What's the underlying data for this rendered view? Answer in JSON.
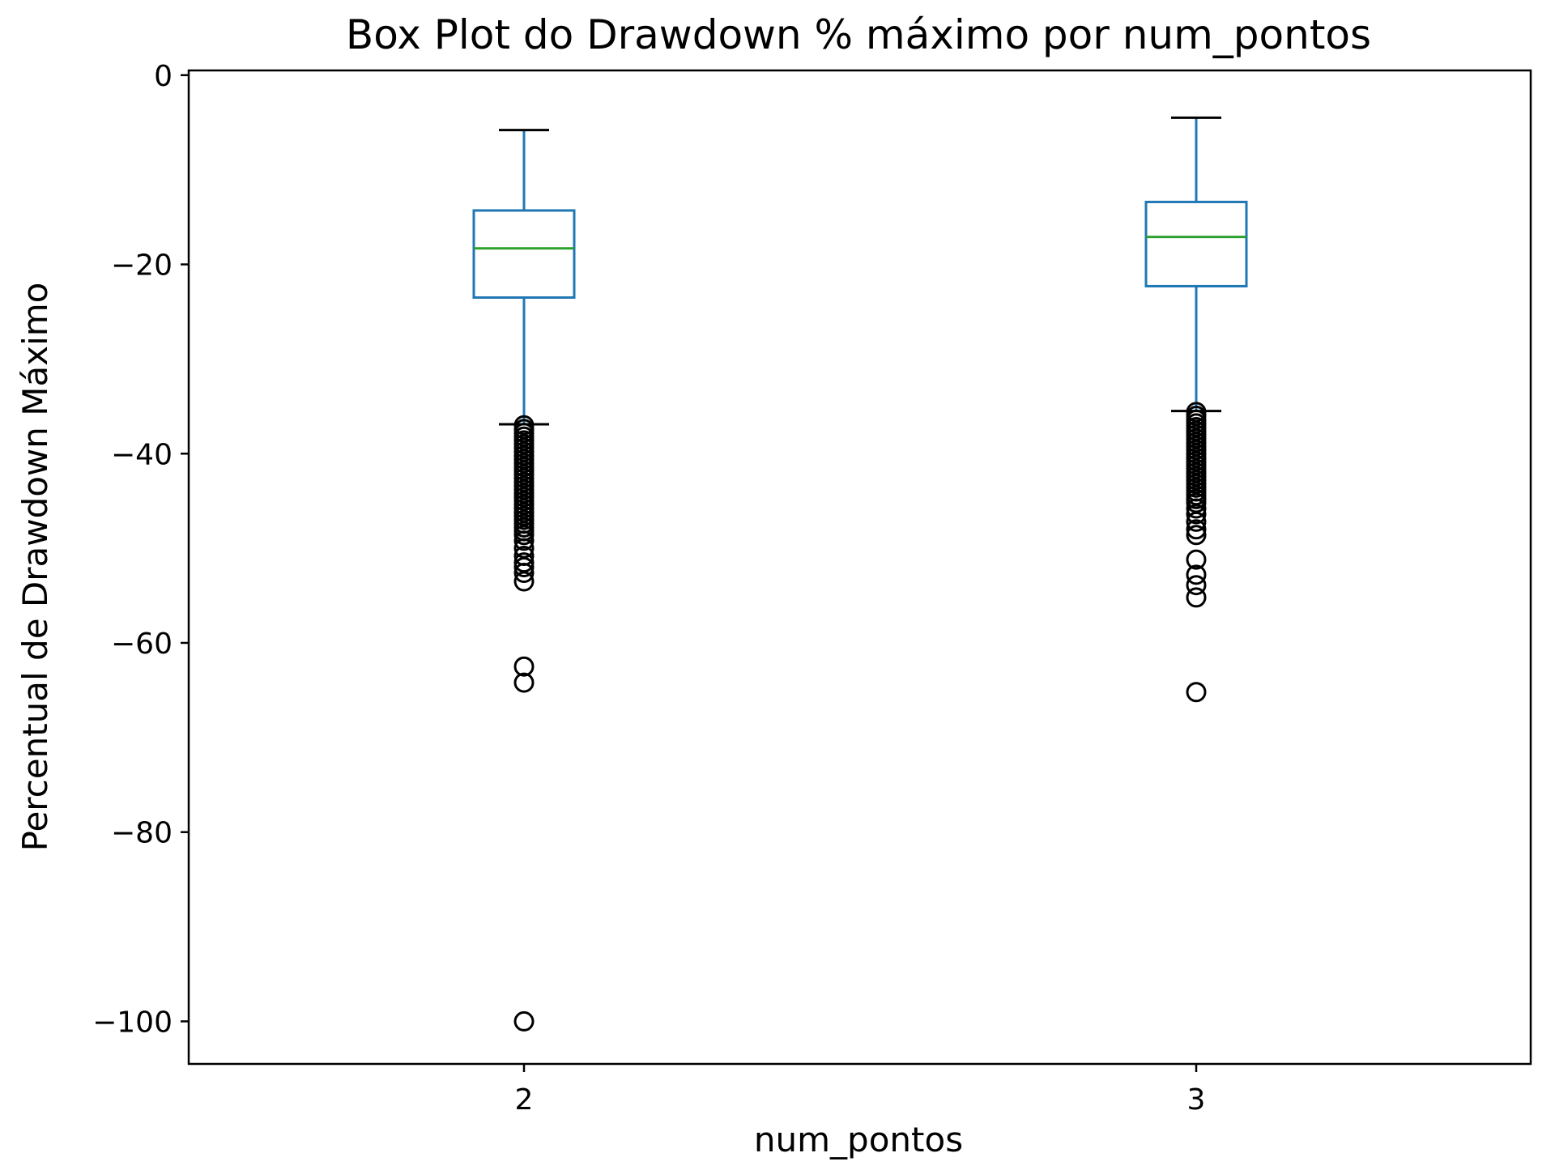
{
  "chart_data": {
    "type": "box",
    "title": "Box Plot do Drawdown % máximo por num_pontos",
    "xlabel": "num_pontos",
    "ylabel": "Percentual de Drawdown Máximo",
    "ylim": [
      -104.5,
      0.5
    ],
    "yticks": [
      0,
      -20,
      -40,
      -60,
      -80,
      -100
    ],
    "ytick_labels": [
      "0",
      "−20",
      "−40",
      "−60",
      "−80",
      "−100"
    ],
    "categories": [
      "2",
      "3"
    ],
    "grid": false,
    "colors": {
      "box": "#1f77b4",
      "median": "#2ca02c",
      "whisker": "#1f77b4",
      "cap": "#000000",
      "flier": "#000000"
    },
    "boxes": [
      {
        "category": "2",
        "whisker_high": -5.8,
        "q3": -14.3,
        "median": -18.3,
        "q1": -23.5,
        "whisker_low": -36.9,
        "outliers": [
          -37.0,
          -37.4,
          -37.8,
          -38.2,
          -38.6,
          -39.0,
          -39.4,
          -39.8,
          -40.2,
          -40.6,
          -41.0,
          -41.4,
          -41.8,
          -42.2,
          -42.6,
          -43.0,
          -43.4,
          -43.8,
          -44.2,
          -44.6,
          -45.0,
          -45.4,
          -45.8,
          -46.2,
          -46.6,
          -47.0,
          -47.4,
          -47.8,
          -48.2,
          -48.6,
          -49.2,
          -50.0,
          -50.8,
          -51.5,
          -52.0,
          -52.6,
          -53.5,
          -62.5,
          -64.2,
          -100.0
        ]
      },
      {
        "category": "3",
        "whisker_high": -4.5,
        "q3": -13.4,
        "median": -17.1,
        "q1": -22.3,
        "whisker_low": -35.5,
        "outliers": [
          -35.6,
          -36.0,
          -36.4,
          -36.8,
          -37.2,
          -37.6,
          -38.0,
          -38.4,
          -38.8,
          -39.2,
          -39.6,
          -40.0,
          -40.4,
          -40.8,
          -41.2,
          -41.6,
          -42.0,
          -42.4,
          -42.8,
          -43.2,
          -43.6,
          -44.0,
          -44.4,
          -44.8,
          -45.2,
          -45.8,
          -46.4,
          -47.2,
          -48.0,
          -48.6,
          -51.2,
          -52.8,
          -53.9,
          -55.2,
          -65.2
        ]
      }
    ]
  }
}
